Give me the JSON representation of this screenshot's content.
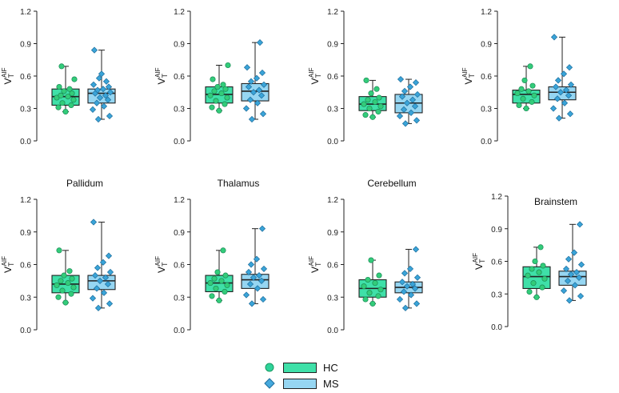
{
  "chart_data": [
    {
      "type": "box",
      "title": "",
      "ylabel_main": "V",
      "ylabel_sub": "T",
      "ylabel_sup": "AIF",
      "ylim": [
        0,
        1.2
      ],
      "yticks": [
        "0.0",
        "0.3",
        "0.6",
        "0.9",
        "1.2"
      ],
      "series": [
        {
          "name": "HC",
          "min": 0.27,
          "q1": 0.33,
          "median": 0.41,
          "q3": 0.48,
          "max": 0.69,
          "points": [
            0.27,
            0.31,
            0.33,
            0.35,
            0.38,
            0.4,
            0.41,
            0.42,
            0.44,
            0.46,
            0.48,
            0.5,
            0.57,
            0.69
          ]
        },
        {
          "name": "MS",
          "min": 0.2,
          "q1": 0.35,
          "median": 0.44,
          "q3": 0.48,
          "max": 0.84,
          "points": [
            0.2,
            0.23,
            0.29,
            0.32,
            0.35,
            0.38,
            0.4,
            0.42,
            0.44,
            0.45,
            0.47,
            0.48,
            0.5,
            0.52,
            0.55,
            0.58,
            0.62,
            0.84
          ]
        }
      ]
    },
    {
      "type": "box",
      "title": "",
      "ylabel_main": "V",
      "ylabel_sub": "T",
      "ylabel_sup": "AIF",
      "ylim": [
        0,
        1.2
      ],
      "yticks": [
        "0.0",
        "0.3",
        "0.6",
        "0.9",
        "1.2"
      ],
      "series": [
        {
          "name": "HC",
          "min": 0.28,
          "q1": 0.35,
          "median": 0.43,
          "q3": 0.5,
          "max": 0.7,
          "points": [
            0.28,
            0.31,
            0.34,
            0.37,
            0.4,
            0.42,
            0.44,
            0.46,
            0.48,
            0.5,
            0.52,
            0.57,
            0.7
          ]
        },
        {
          "name": "MS",
          "min": 0.2,
          "q1": 0.37,
          "median": 0.46,
          "q3": 0.53,
          "max": 0.91,
          "points": [
            0.2,
            0.25,
            0.3,
            0.35,
            0.38,
            0.42,
            0.45,
            0.47,
            0.5,
            0.52,
            0.55,
            0.58,
            0.63,
            0.68,
            0.91
          ]
        }
      ]
    },
    {
      "type": "box",
      "title": "",
      "ylabel_main": "V",
      "ylabel_sub": "T",
      "ylabel_sup": "AIF",
      "ylim": [
        0,
        1.2
      ],
      "yticks": [
        "0.0",
        "0.3",
        "0.6",
        "0.9",
        "1.2"
      ],
      "series": [
        {
          "name": "HC",
          "min": 0.22,
          "q1": 0.28,
          "median": 0.34,
          "q3": 0.41,
          "max": 0.56,
          "points": [
            0.22,
            0.24,
            0.27,
            0.3,
            0.32,
            0.34,
            0.36,
            0.38,
            0.4,
            0.44,
            0.48,
            0.56
          ]
        },
        {
          "name": "MS",
          "min": 0.16,
          "q1": 0.26,
          "median": 0.35,
          "q3": 0.43,
          "max": 0.57,
          "points": [
            0.16,
            0.19,
            0.23,
            0.26,
            0.29,
            0.32,
            0.35,
            0.38,
            0.41,
            0.43,
            0.46,
            0.5,
            0.54,
            0.57
          ]
        }
      ]
    },
    {
      "type": "box",
      "title": "",
      "ylabel_main": "V",
      "ylabel_sub": "T",
      "ylabel_sup": "AIF",
      "ylim": [
        0,
        1.2
      ],
      "yticks": [
        "0.0",
        "0.3",
        "0.6",
        "0.9",
        "1.2"
      ],
      "series": [
        {
          "name": "HC",
          "min": 0.3,
          "q1": 0.35,
          "median": 0.43,
          "q3": 0.47,
          "max": 0.69,
          "points": [
            0.3,
            0.33,
            0.36,
            0.39,
            0.42,
            0.44,
            0.46,
            0.48,
            0.51,
            0.56,
            0.69
          ]
        },
        {
          "name": "MS",
          "min": 0.21,
          "q1": 0.38,
          "median": 0.45,
          "q3": 0.5,
          "max": 0.96,
          "points": [
            0.21,
            0.25,
            0.3,
            0.35,
            0.39,
            0.42,
            0.45,
            0.47,
            0.5,
            0.52,
            0.56,
            0.62,
            0.68,
            0.96
          ]
        }
      ]
    },
    {
      "type": "box",
      "title": "Pallidum",
      "ylabel_main": "V",
      "ylabel_sub": "T",
      "ylabel_sup": "AIF",
      "ylim": [
        0,
        1.2
      ],
      "yticks": [
        "0.0",
        "0.3",
        "0.6",
        "0.9",
        "1.2"
      ],
      "series": [
        {
          "name": "HC",
          "min": 0.25,
          "q1": 0.34,
          "median": 0.42,
          "q3": 0.5,
          "max": 0.73,
          "points": [
            0.25,
            0.3,
            0.33,
            0.36,
            0.39,
            0.41,
            0.43,
            0.45,
            0.47,
            0.5,
            0.54,
            0.73
          ]
        },
        {
          "name": "MS",
          "min": 0.2,
          "q1": 0.37,
          "median": 0.45,
          "q3": 0.5,
          "max": 0.99,
          "points": [
            0.2,
            0.24,
            0.29,
            0.34,
            0.38,
            0.42,
            0.45,
            0.48,
            0.5,
            0.53,
            0.57,
            0.62,
            0.68,
            0.99
          ]
        }
      ]
    },
    {
      "type": "box",
      "title": "Thalamus",
      "ylabel_main": "V",
      "ylabel_sub": "T",
      "ylabel_sup": "AIF",
      "ylim": [
        0,
        1.2
      ],
      "yticks": [
        "0.0",
        "0.3",
        "0.6",
        "0.9",
        "1.2"
      ],
      "series": [
        {
          "name": "HC",
          "min": 0.27,
          "q1": 0.35,
          "median": 0.43,
          "q3": 0.5,
          "max": 0.73,
          "points": [
            0.27,
            0.31,
            0.35,
            0.38,
            0.41,
            0.43,
            0.45,
            0.47,
            0.5,
            0.53,
            0.73
          ]
        },
        {
          "name": "MS",
          "min": 0.24,
          "q1": 0.38,
          "median": 0.46,
          "q3": 0.51,
          "max": 0.93,
          "points": [
            0.24,
            0.28,
            0.32,
            0.38,
            0.42,
            0.45,
            0.48,
            0.5,
            0.53,
            0.56,
            0.6,
            0.65,
            0.93
          ]
        }
      ]
    },
    {
      "type": "box",
      "title": "Cerebellum",
      "ylabel_main": "V",
      "ylabel_sub": "T",
      "ylabel_sup": "AIF",
      "ylim": [
        0,
        1.2
      ],
      "yticks": [
        "0.0",
        "0.3",
        "0.6",
        "0.9",
        "1.2"
      ],
      "series": [
        {
          "name": "HC",
          "min": 0.24,
          "q1": 0.3,
          "median": 0.38,
          "q3": 0.46,
          "max": 0.64,
          "points": [
            0.24,
            0.28,
            0.31,
            0.34,
            0.37,
            0.4,
            0.43,
            0.46,
            0.5,
            0.64
          ]
        },
        {
          "name": "MS",
          "min": 0.2,
          "q1": 0.34,
          "median": 0.39,
          "q3": 0.44,
          "max": 0.74,
          "points": [
            0.2,
            0.24,
            0.28,
            0.32,
            0.35,
            0.38,
            0.4,
            0.42,
            0.44,
            0.48,
            0.52,
            0.56,
            0.74
          ]
        }
      ]
    },
    {
      "type": "box",
      "title": "Brainstem",
      "ylabel_main": "V",
      "ylabel_sub": "T",
      "ylabel_sup": "AIF",
      "ylim": [
        0,
        1.2
      ],
      "yticks": [
        "0.0",
        "0.3",
        "0.6",
        "0.9",
        "1.2"
      ],
      "series": [
        {
          "name": "HC",
          "min": 0.27,
          "q1": 0.35,
          "median": 0.46,
          "q3": 0.55,
          "max": 0.73,
          "points": [
            0.27,
            0.32,
            0.36,
            0.4,
            0.44,
            0.47,
            0.5,
            0.53,
            0.56,
            0.6,
            0.73
          ]
        },
        {
          "name": "MS",
          "min": 0.24,
          "q1": 0.38,
          "median": 0.46,
          "q3": 0.51,
          "max": 0.94,
          "points": [
            0.24,
            0.28,
            0.33,
            0.38,
            0.42,
            0.45,
            0.48,
            0.5,
            0.53,
            0.57,
            0.62,
            0.68,
            0.94
          ]
        }
      ]
    }
  ],
  "legend": {
    "items": [
      {
        "label": "HC",
        "marker": "circle",
        "color": "#2fd39a"
      },
      {
        "label": "MS",
        "marker": "diamond",
        "color": "#46a9dd"
      }
    ]
  },
  "colors": {
    "hc_fill": "#2fd39a",
    "hc_point": "#33cc7a",
    "hc_box": "#3fe0a8",
    "ms_fill": "#8fd3f0",
    "ms_point": "#3aa4d8",
    "ms_box": "#96d6f2",
    "axis": "#222222"
  }
}
